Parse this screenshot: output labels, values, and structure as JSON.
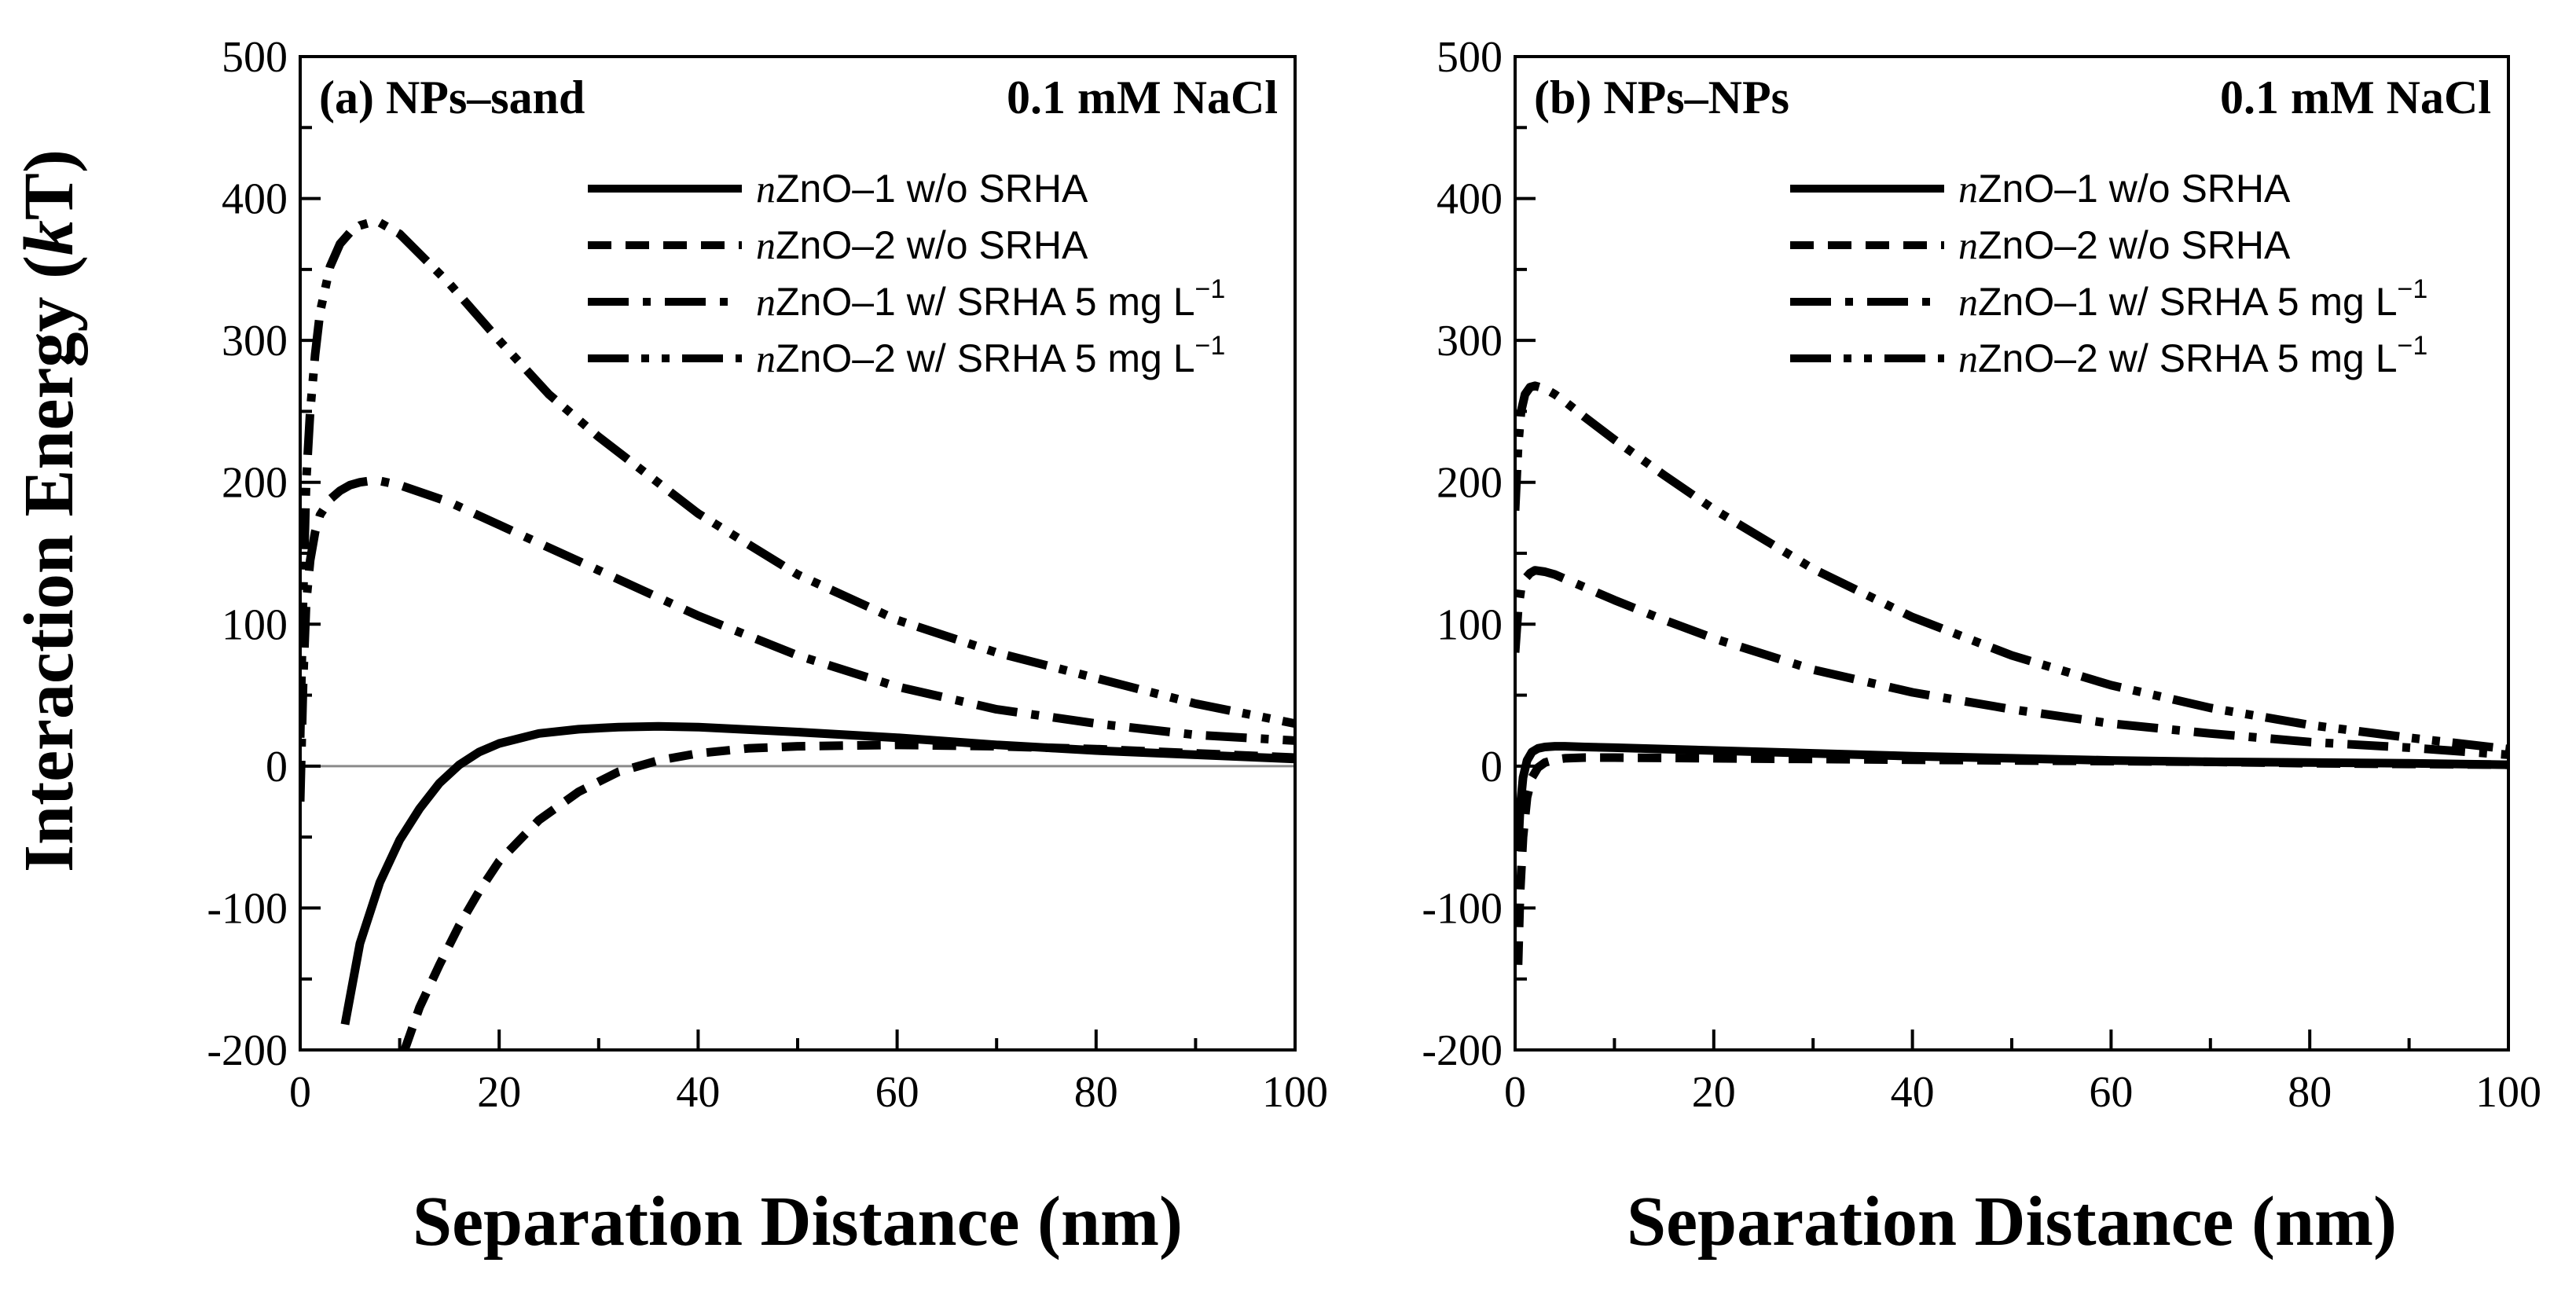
{
  "figure": {
    "ylabel_main": "Interaction Energy (",
    "ylabel_italic": "k",
    "ylabel_tail": "T)"
  },
  "chart_data": [
    {
      "type": "line",
      "panel_title": "(a) NPs–sand",
      "condition": "0.1 mM NaCl",
      "xlabel": "Separation Distance (nm)",
      "ylabel": "Interaction Energy (kT)",
      "xlim": [
        0,
        100
      ],
      "ylim": [
        -200,
        500
      ],
      "xticks": [
        0,
        20,
        40,
        60,
        80,
        100
      ],
      "yticks": [
        -200,
        -100,
        0,
        100,
        200,
        300,
        400,
        500
      ],
      "zero_line": true,
      "legend_position": "top-right",
      "series": [
        {
          "name": "nZnO–1 w/o SRHA",
          "legend_italic": "n",
          "legend_rest": "ZnO–1 w/o SRHA",
          "legend_unit_sup": "",
          "dash": "solid",
          "x": [
            4.5,
            6,
            8,
            10,
            12,
            14,
            16,
            18,
            20,
            24,
            28,
            32,
            36,
            40,
            50,
            60,
            70,
            80,
            90,
            100
          ],
          "y": [
            -182,
            -125,
            -82,
            -52,
            -30,
            -12,
            1,
            10,
            16,
            23,
            26,
            27.5,
            28,
            27.5,
            24,
            20,
            15,
            11,
            8,
            5
          ]
        },
        {
          "name": "nZnO–2 w/o SRHA",
          "legend_italic": "n",
          "legend_rest": "ZnO–2 w/o SRHA",
          "legend_unit_sup": "",
          "dash": "dash",
          "x": [
            10.5,
            12,
            14,
            16,
            18,
            20,
            24,
            28,
            32,
            36,
            40,
            45,
            50,
            60,
            70,
            80,
            90,
            100
          ],
          "y": [
            -200,
            -170,
            -140,
            -112,
            -88,
            -67,
            -38,
            -18,
            -4,
            4,
            9,
            12.5,
            14,
            15,
            14,
            12,
            9,
            6
          ]
        },
        {
          "name": "nZnO–1 w/ SRHA 5 mg L−1",
          "legend_italic": "n",
          "legend_rest": "ZnO–1 w/ SRHA 5 mg L",
          "legend_unit_sup": "−1",
          "dash": "dashdot",
          "x": [
            0,
            0.3,
            0.6,
            1,
            1.5,
            2,
            3,
            4,
            5,
            6,
            7,
            8,
            10,
            15,
            20,
            30,
            40,
            50,
            60,
            70,
            80,
            90,
            100
          ],
          "y": [
            -25,
            60,
            115,
            145,
            165,
            177,
            188,
            194,
            198,
            200,
            201,
            201,
            198,
            186,
            170,
            138,
            106,
            78,
            56,
            40,
            30,
            22,
            18
          ]
        },
        {
          "name": "nZnO–2 w/ SRHA 5 mg L−1",
          "legend_italic": "n",
          "legend_rest": "ZnO–2 w/ SRHA 5 mg L",
          "legend_unit_sup": "−1",
          "dash": "dashdotdot",
          "x": [
            0,
            0.3,
            0.6,
            1,
            1.5,
            2,
            3,
            4,
            5,
            6,
            7,
            8,
            10,
            15,
            20,
            25,
            30,
            40,
            50,
            60,
            70,
            80,
            90,
            100
          ],
          "y": [
            20,
            120,
            200,
            250,
            290,
            320,
            352,
            368,
            376,
            381,
            383,
            383,
            375,
            340,
            300,
            262,
            232,
            178,
            135,
            103,
            80,
            62,
            44,
            30
          ]
        }
      ]
    },
    {
      "type": "line",
      "panel_title": "(b) NPs–NPs",
      "condition": "0.1 mM NaCl",
      "xlabel": "Separation Distance (nm)",
      "ylabel": "Interaction Energy (kT)",
      "xlim": [
        0,
        100
      ],
      "ylim": [
        -200,
        500
      ],
      "xticks": [
        0,
        20,
        40,
        60,
        80,
        100
      ],
      "yticks": [
        -200,
        -100,
        0,
        100,
        200,
        300,
        400,
        500
      ],
      "zero_line": false,
      "legend_position": "top-right",
      "series": [
        {
          "name": "nZnO–1 w/o SRHA",
          "legend_italic": "n",
          "legend_rest": "ZnO–1 w/o SRHA",
          "legend_unit_sup": "",
          "dash": "solid",
          "x": [
            0.3,
            0.5,
            0.8,
            1.2,
            1.7,
            2.3,
            3,
            4,
            5,
            7,
            10,
            20,
            30,
            40,
            50,
            60,
            70,
            80,
            90,
            100
          ],
          "y": [
            -60,
            -30,
            -8,
            4,
            10,
            12.5,
            13.5,
            14,
            14,
            13.5,
            13,
            11,
            9,
            7,
            5.5,
            4,
            3,
            2.5,
            2,
            1
          ]
        },
        {
          "name": "nZnO–2 w/o SRHA",
          "legend_italic": "n",
          "legend_rest": "ZnO–2 w/o SRHA",
          "legend_unit_sup": "",
          "dash": "dash",
          "x": [
            0.3,
            0.5,
            0.8,
            1.2,
            1.7,
            2.3,
            3,
            4,
            5,
            7,
            10,
            20,
            30,
            40,
            50,
            60,
            70,
            80,
            90,
            100
          ],
          "y": [
            -140,
            -90,
            -50,
            -22,
            -8,
            -1,
            2.5,
            4.5,
            5.5,
            6,
            6,
            5.5,
            5,
            4.5,
            4,
            3.5,
            3,
            2,
            1.5,
            1
          ]
        },
        {
          "name": "nZnO–1 w/ SRHA 5 mg L−1",
          "legend_italic": "n",
          "legend_rest": "ZnO–1 w/ SRHA 5 mg L",
          "legend_unit_sup": "−1",
          "dash": "dashdot",
          "x": [
            0,
            0.3,
            0.6,
            1,
            1.5,
            2,
            3,
            4,
            5,
            7,
            10,
            15,
            20,
            30,
            40,
            50,
            60,
            70,
            80,
            90,
            100
          ],
          "y": [
            80,
            110,
            125,
            132,
            136,
            138,
            137,
            135,
            132,
            126,
            117,
            103,
            90,
            68,
            52,
            40,
            30,
            23,
            17,
            13,
            8
          ]
        },
        {
          "name": "nZnO–2 w/ SRHA 5 mg L−1",
          "legend_italic": "n",
          "legend_rest": "ZnO–2 w/ SRHA 5 mg L",
          "legend_unit_sup": "−1",
          "dash": "dashdotdot",
          "x": [
            0,
            0.3,
            0.6,
            1,
            1.5,
            2,
            3,
            4,
            5,
            7,
            10,
            15,
            20,
            30,
            40,
            50,
            60,
            70,
            80,
            90,
            100
          ],
          "y": [
            180,
            225,
            250,
            262,
            267,
            268,
            266,
            262,
            257,
            246,
            230,
            205,
            181,
            139,
            105,
            78,
            57,
            41,
            29,
            20,
            12
          ]
        }
      ]
    }
  ]
}
